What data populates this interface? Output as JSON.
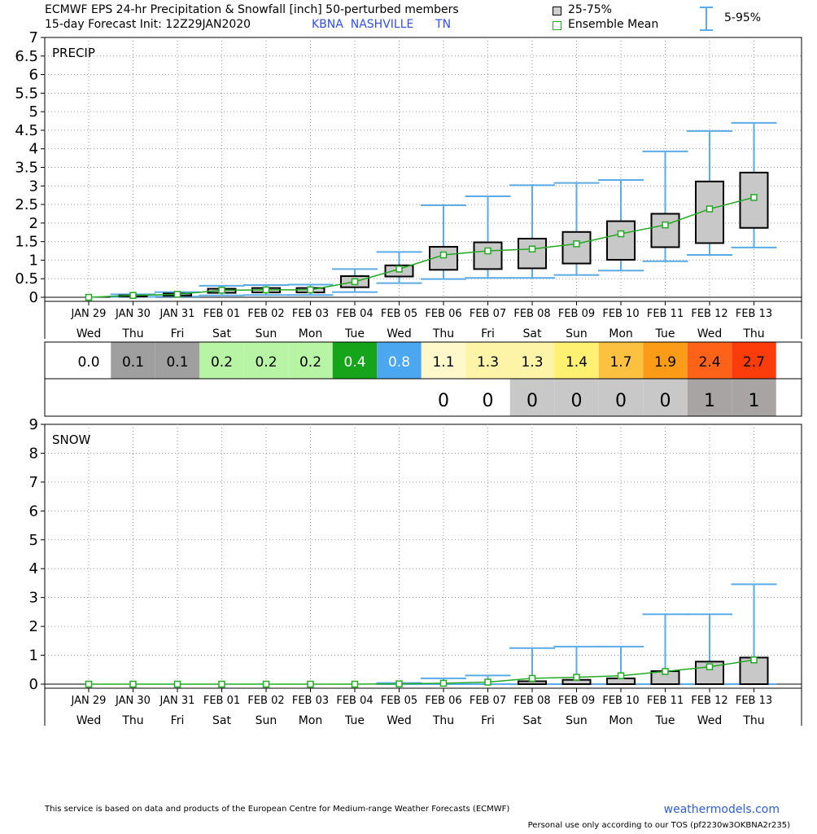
{
  "header": {
    "title_line1": "ECMWF EPS 24-hr Precipitation & Snowfall [inch]  50-perturbed members",
    "title_line2": "15-day Forecast Init: 12Z29JAN2020",
    "station": "KBNA  NASHVILLE      TN",
    "legend_box": "25-75%",
    "legend_mean": "Ensemble Mean",
    "legend_whisker": "5-95%"
  },
  "colors": {
    "mean_line": "#22aa22",
    "whisker": "#5aabe6",
    "box_fill": "#c8c8c8",
    "station_text": "#3050e0"
  },
  "chart_data": [
    {
      "type": "box",
      "title": "PRECIP",
      "ylim": [
        0,
        7
      ],
      "yticks": [
        "0",
        "0.5",
        "1",
        "1.5",
        "2",
        "2.5",
        "3",
        "3.5",
        "4",
        "4.5",
        "5",
        "5.5",
        "6",
        "6.5",
        "7"
      ],
      "grid": true,
      "categories": [
        "JAN 29",
        "JAN 30",
        "JAN 31",
        "FEB 01",
        "FEB 02",
        "FEB 03",
        "FEB 04",
        "FEB 05",
        "FEB 06",
        "FEB 07",
        "FEB 08",
        "FEB 09",
        "FEB 10",
        "FEB 11",
        "FEB 12",
        "FEB 13"
      ],
      "weekdays": [
        "Wed",
        "Thu",
        "Fri",
        "Sat",
        "Sun",
        "Mon",
        "Tue",
        "Wed",
        "Thu",
        "Fri",
        "Sat",
        "Sun",
        "Mon",
        "Tue",
        "Wed",
        "Thu"
      ],
      "p5": [
        0,
        0.01,
        0.02,
        0.05,
        0.06,
        0.06,
        0.14,
        0.38,
        0.49,
        0.52,
        0.52,
        0.6,
        0.72,
        0.97,
        1.14,
        1.34
      ],
      "p25": [
        0,
        0.02,
        0.04,
        0.12,
        0.13,
        0.13,
        0.27,
        0.56,
        0.74,
        0.76,
        0.78,
        0.91,
        1.01,
        1.35,
        1.46,
        1.87
      ],
      "p75": [
        0,
        0.05,
        0.1,
        0.23,
        0.25,
        0.25,
        0.57,
        0.86,
        1.36,
        1.48,
        1.58,
        1.76,
        2.05,
        2.25,
        3.12,
        3.36
      ],
      "p95": [
        0,
        0.08,
        0.14,
        0.31,
        0.33,
        0.34,
        0.76,
        1.22,
        2.48,
        2.72,
        3.02,
        3.08,
        3.16,
        3.93,
        4.48,
        4.7
      ],
      "mean": [
        0,
        0.05,
        0.08,
        0.19,
        0.2,
        0.2,
        0.42,
        0.76,
        1.14,
        1.25,
        1.3,
        1.44,
        1.71,
        1.95,
        2.38,
        2.69
      ]
    },
    {
      "type": "box",
      "title": "SNOW",
      "ylim": [
        0,
        9
      ],
      "yticks": [
        "0",
        "1",
        "2",
        "3",
        "4",
        "5",
        "6",
        "7",
        "8",
        "9"
      ],
      "grid": true,
      "categories": [
        "JAN 29",
        "JAN 30",
        "JAN 31",
        "FEB 01",
        "FEB 02",
        "FEB 03",
        "FEB 04",
        "FEB 05",
        "FEB 06",
        "FEB 07",
        "FEB 08",
        "FEB 09",
        "FEB 10",
        "FEB 11",
        "FEB 12",
        "FEB 13"
      ],
      "weekdays": [
        "Wed",
        "Thu",
        "Fri",
        "Sat",
        "Sun",
        "Mon",
        "Tue",
        "Wed",
        "Thu",
        "Fri",
        "Sat",
        "Sun",
        "Mon",
        "Tue",
        "Wed",
        "Thu"
      ],
      "p5": [
        0,
        0,
        0,
        0,
        0,
        0,
        0,
        0,
        0,
        0,
        0,
        0,
        0,
        0,
        0,
        0
      ],
      "p25": [
        0,
        0,
        0,
        0,
        0,
        0,
        0,
        0,
        0,
        0,
        0,
        0,
        0,
        0,
        0,
        0
      ],
      "p75": [
        0,
        0,
        0,
        0,
        0,
        0,
        0,
        0,
        0,
        0,
        0.1,
        0.15,
        0.2,
        0.45,
        0.78,
        0.92
      ],
      "p95": [
        0,
        0,
        0,
        0,
        0,
        0,
        0,
        0.04,
        0.2,
        0.3,
        1.25,
        1.3,
        1.3,
        2.42,
        2.42,
        3.46
      ],
      "mean": [
        0,
        0,
        0,
        0,
        0,
        0,
        0,
        0.01,
        0.03,
        0.07,
        0.2,
        0.24,
        0.29,
        0.44,
        0.6,
        0.84
      ]
    }
  ],
  "table": {
    "precip_row": [
      "0.0",
      "0.1",
      "0.1",
      "0.2",
      "0.2",
      "0.2",
      "0.4",
      "0.8",
      "1.1",
      "1.3",
      "1.3",
      "1.4",
      "1.7",
      "1.9",
      "2.4",
      "2.7"
    ],
    "precip_colors": [
      "#ffffff",
      "#9f9f9f",
      "#9f9f9f",
      "#b7f5a5",
      "#b7f5a5",
      "#b7f5a5",
      "#16a41a",
      "#4ba7f0",
      "#fef8cb",
      "#fef4a8",
      "#fef4a8",
      "#fef070",
      "#fcc140",
      "#fc9b16",
      "#fd6218",
      "#fd3c0c"
    ],
    "precip_text_colors": [
      "#000000",
      "#000000",
      "#000000",
      "#000000",
      "#000000",
      "#000000",
      "#ffffff",
      "#ffffff",
      "#000000",
      "#000000",
      "#000000",
      "#000000",
      "#000000",
      "#000000",
      "#000000",
      "#000000"
    ],
    "snow_row": [
      "",
      "",
      "",
      "",
      "",
      "",
      "",
      "",
      "0",
      "0",
      "0",
      "0",
      "0",
      "0",
      "1",
      "1"
    ],
    "snow_colors": [
      "#ffffff",
      "#ffffff",
      "#ffffff",
      "#ffffff",
      "#ffffff",
      "#ffffff",
      "#ffffff",
      "#ffffff",
      "#ffffff",
      "#ffffff",
      "#c8c8c8",
      "#c8c8c8",
      "#c8c8c8",
      "#c8c8c8",
      "#a8a4a4",
      "#a8a4a4"
    ]
  },
  "footer": {
    "disclaimer": "This service is based on data and products of the European Centre for Medium-range Weather Forecasts (ECMWF)",
    "site": "weathermodels.com",
    "tos": "Personal use only according to our TOS (pf2230w3OKBNA2r235)"
  }
}
